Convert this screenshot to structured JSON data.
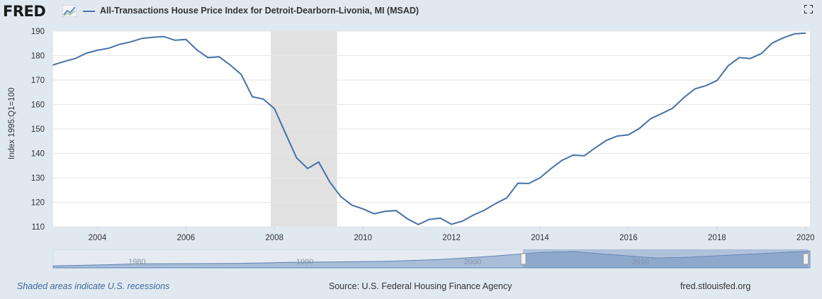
{
  "header": {
    "logo_text": "FRED",
    "logo_badge_icon": "chart-line-icon",
    "series_title": "All-Transactions House Price Index for Detroit-Dearborn-Livonia, MI (MSAD)",
    "fullscreen_icon": "fullscreen-icon"
  },
  "footer": {
    "recession_note": "Shaded areas indicate U.S. recessions",
    "source": "Source: U.S. Federal Housing Finance Agency",
    "site": "fred.stlouisfed.org"
  },
  "colors": {
    "line": "#4572a7",
    "recession": "#e1e1e1",
    "background": "#e1e9f0",
    "plot": "#ffffff",
    "navigator_fill": "#a8bdd8",
    "navigator_selected": "#6f8fbf"
  },
  "chart_data": {
    "type": "line",
    "title": "",
    "xlabel": "",
    "ylabel": "Index 1995:Q1=100",
    "ylim": [
      110,
      190
    ],
    "yticks": [
      110,
      120,
      130,
      140,
      150,
      160,
      170,
      180,
      190
    ],
    "xticks": [
      "2004",
      "2006",
      "2008",
      "2010",
      "2012",
      "2014",
      "2016",
      "2018",
      "2020"
    ],
    "grid": true,
    "recession": {
      "start": "2007-12",
      "end": "2009-06"
    },
    "series": [
      {
        "name": "",
        "x": [
          "2003-01",
          "2003-04",
          "2003-07",
          "2003-10",
          "2004-01",
          "2004-04",
          "2004-07",
          "2004-10",
          "2005-01",
          "2005-04",
          "2005-07",
          "2005-10",
          "2006-01",
          "2006-04",
          "2006-07",
          "2006-10",
          "2007-01",
          "2007-04",
          "2007-07",
          "2007-10",
          "2008-01",
          "2008-04",
          "2008-07",
          "2008-10",
          "2009-01",
          "2009-04",
          "2009-07",
          "2009-10",
          "2010-01",
          "2010-04",
          "2010-07",
          "2010-10",
          "2011-01",
          "2011-04",
          "2011-07",
          "2011-10",
          "2012-01",
          "2012-04",
          "2012-07",
          "2012-10",
          "2013-01",
          "2013-04",
          "2013-07",
          "2013-10",
          "2014-01",
          "2014-04",
          "2014-07",
          "2014-10",
          "2015-01",
          "2015-04",
          "2015-07",
          "2015-10",
          "2016-01",
          "2016-04",
          "2016-07",
          "2016-10",
          "2017-01",
          "2017-04",
          "2017-07",
          "2017-10",
          "2018-01",
          "2018-04",
          "2018-07",
          "2018-10",
          "2019-01",
          "2019-04",
          "2019-07",
          "2019-10",
          "2020-01"
        ],
        "values": [
          176.2,
          177.6,
          178.8,
          181.0,
          182.2,
          183.0,
          184.6,
          185.6,
          187.0,
          187.5,
          187.8,
          186.3,
          186.6,
          182.3,
          179.2,
          179.5,
          176.2,
          172.3,
          163.2,
          162.2,
          158.3,
          148.2,
          138.2,
          133.8,
          136.5,
          128.3,
          122.3,
          118.8,
          117.3,
          115.3,
          116.3,
          116.6,
          113.3,
          110.9,
          113.0,
          113.5,
          111.0,
          112.3,
          114.8,
          116.8,
          119.5,
          121.8,
          127.8,
          127.7,
          130.0,
          133.8,
          137.2,
          139.3,
          139.0,
          142.3,
          145.3,
          147.1,
          147.6,
          150.3,
          154.2,
          156.3,
          158.5,
          162.8,
          166.4,
          167.7,
          169.8,
          175.8,
          179.2,
          178.8,
          180.8,
          185.2,
          187.3,
          188.9,
          189.2
        ]
      }
    ],
    "navigator": {
      "xticks": [
        "1980",
        "1990",
        "2000",
        "2010"
      ],
      "range_start": "2003-01",
      "range_end": "2020-01"
    }
  }
}
